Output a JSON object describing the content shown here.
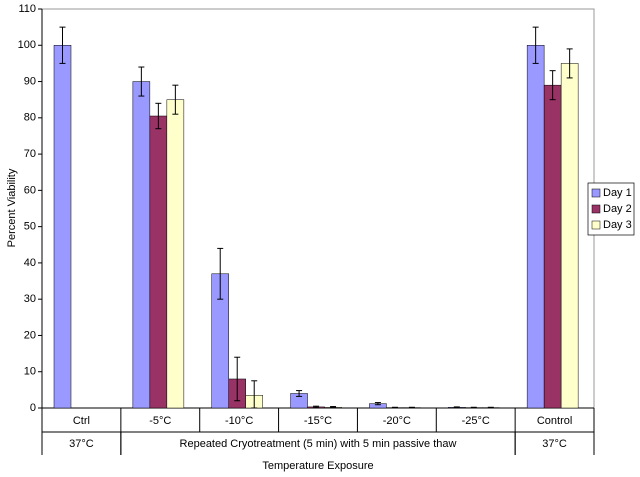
{
  "chart_data": {
    "type": "bar",
    "y_label": "Percent Viability",
    "x_label": "Temperature Exposure",
    "categories": [
      "Ctrl",
      "-5°C",
      "-10°C",
      "-15°C",
      "-20°C",
      "-25°C",
      "Control"
    ],
    "group_labels": [
      "37°C",
      "Repeated Cryotreatment (5 min) with 5 min passive thaw",
      "37°C"
    ],
    "group_sizes": [
      1,
      5,
      1
    ],
    "series": [
      {
        "name": "Day 1",
        "color": "#9999ff",
        "values": [
          100,
          90,
          37,
          4,
          1.2,
          0.2,
          100
        ],
        "errors": [
          5,
          4,
          7,
          0.8,
          0.3,
          0.1,
          5
        ]
      },
      {
        "name": "Day 2",
        "color": "#993366",
        "values": [
          null,
          80.5,
          8,
          0.3,
          0.1,
          0.1,
          89
        ],
        "errors": [
          null,
          3.5,
          6,
          0.2,
          0.1,
          0.1,
          4
        ]
      },
      {
        "name": "Day 3",
        "color": "#ffffcc",
        "values": [
          null,
          85,
          3.5,
          0.2,
          0.1,
          0.1,
          95
        ],
        "errors": [
          null,
          4,
          4,
          0.2,
          0.1,
          0.1,
          4
        ]
      }
    ],
    "ylim": [
      0,
      110
    ],
    "yticks": [
      0,
      10,
      20,
      30,
      40,
      50,
      60,
      70,
      80,
      90,
      100,
      110
    ],
    "grid": false,
    "legend": "right"
  }
}
